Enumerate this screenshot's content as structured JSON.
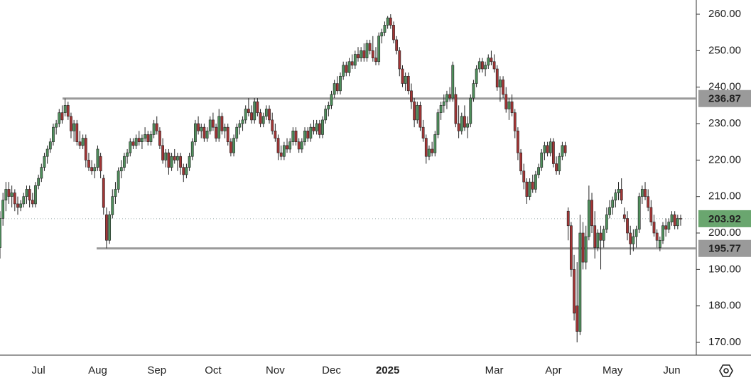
{
  "chart_data": {
    "type": "candlestick",
    "up_color": "#4f8f5c",
    "down_color": "#a33535",
    "level_color": "#9a9a9a",
    "last_color": "#6aa66f",
    "ylim": [
      166.5,
      263.9
    ],
    "yticks": [
      {
        "value": 170,
        "label": "170.00"
      },
      {
        "value": 180,
        "label": "180.00"
      },
      {
        "value": 190,
        "label": "190.00"
      },
      {
        "value": 200,
        "label": "200.00"
      },
      {
        "value": 210,
        "label": "210.00"
      },
      {
        "value": 220,
        "label": "220.00"
      },
      {
        "value": 230,
        "label": "230.00"
      },
      {
        "value": 240,
        "label": "240.00"
      },
      {
        "value": 250,
        "label": "250.00"
      },
      {
        "value": 260,
        "label": "260.00"
      }
    ],
    "levels": [
      {
        "value": 236.87,
        "label": "236.87"
      },
      {
        "value": 195.77,
        "label": "195.77"
      }
    ],
    "last_price": {
      "value": 203.92,
      "label": "203.92"
    },
    "categories": [
      null,
      null,
      null,
      null,
      null,
      null,
      null,
      null,
      null,
      null,
      null,
      null,
      null,
      "Jul",
      null,
      null,
      null,
      null,
      null,
      null,
      null,
      null,
      null,
      null,
      null,
      null,
      null,
      null,
      null,
      null,
      null,
      null,
      null,
      "Aug",
      null,
      null,
      null,
      null,
      null,
      null,
      null,
      null,
      null,
      null,
      null,
      null,
      null,
      null,
      null,
      null,
      null,
      null,
      null,
      "Sep",
      null,
      null,
      null,
      null,
      null,
      null,
      null,
      null,
      null,
      null,
      null,
      null,
      null,
      null,
      null,
      null,
      null,
      null,
      "Oct",
      null,
      null,
      null,
      null,
      null,
      null,
      null,
      null,
      null,
      null,
      null,
      null,
      null,
      null,
      null,
      null,
      null,
      null,
      null,
      null,
      "Nov",
      null,
      null,
      null,
      null,
      null,
      null,
      null,
      null,
      null,
      null,
      null,
      null,
      null,
      null,
      null,
      null,
      null,
      null,
      "Dec",
      null,
      null,
      null,
      null,
      null,
      null,
      null,
      null,
      null,
      null,
      null,
      null,
      null,
      null,
      null,
      null,
      null,
      null,
      "2025",
      null,
      null,
      null,
      null,
      null,
      null,
      null,
      null,
      null,
      null,
      null,
      null,
      null,
      null,
      null,
      null,
      null,
      null,
      null,
      null,
      null,
      null,
      null,
      null,
      null,
      null,
      null,
      null,
      null,
      null,
      null,
      null,
      null,
      null,
      null,
      "Mar",
      null,
      null,
      null,
      null,
      null,
      null,
      null,
      null,
      null,
      null,
      null,
      null,
      null,
      null,
      null,
      null,
      null,
      null,
      null,
      "Apr",
      null,
      null,
      null,
      null,
      null,
      null,
      null,
      null,
      null,
      null,
      null,
      null,
      null,
      null,
      null,
      null,
      null,
      null,
      null,
      "May",
      null,
      null,
      null,
      null,
      null,
      null,
      null,
      null,
      null,
      null,
      null,
      null,
      null,
      null,
      null,
      null,
      null,
      null,
      null,
      "Jun",
      null,
      null,
      null
    ],
    "ohlc": [
      [
        196,
        206,
        193,
        204
      ],
      [
        204,
        211,
        202,
        209
      ],
      [
        209,
        214,
        206,
        212
      ],
      [
        212,
        214,
        208,
        210
      ],
      [
        210,
        213,
        207,
        211
      ],
      [
        211,
        212,
        206,
        208
      ],
      [
        208,
        210,
        205,
        207
      ],
      [
        207,
        209,
        206,
        208
      ],
      [
        208,
        211,
        207,
        210
      ],
      [
        210,
        213,
        208,
        212
      ],
      [
        212,
        213,
        207,
        209
      ],
      [
        209,
        211,
        207,
        208
      ],
      [
        208,
        214,
        207,
        213
      ],
      [
        213,
        216,
        212,
        215
      ],
      [
        215,
        219,
        214,
        218
      ],
      [
        218,
        222,
        217,
        221
      ],
      [
        221,
        224,
        219,
        223
      ],
      [
        223,
        226,
        222,
        225
      ],
      [
        225,
        230,
        224,
        229
      ],
      [
        229,
        231,
        227,
        230
      ],
      [
        230,
        234,
        229,
        233
      ],
      [
        233,
        235,
        230,
        231
      ],
      [
        233,
        236.9,
        232,
        235
      ],
      [
        235,
        236,
        231,
        232
      ],
      [
        232,
        233,
        226,
        228
      ],
      [
        228,
        231,
        225,
        230
      ],
      [
        230,
        231,
        224,
        225
      ],
      [
        225,
        228,
        223,
        224
      ],
      [
        224,
        227,
        223,
        226
      ],
      [
        226,
        227,
        218,
        220
      ],
      [
        220,
        222,
        217,
        218
      ],
      [
        218,
        220,
        216,
        217
      ],
      [
        217,
        219,
        215,
        218
      ],
      [
        218,
        224,
        217,
        223
      ],
      [
        221,
        222,
        215,
        217
      ],
      [
        215,
        216,
        205,
        207
      ],
      [
        205,
        207,
        195.8,
        198
      ],
      [
        198,
        206,
        197,
        205
      ],
      [
        205,
        212,
        204,
        210
      ],
      [
        210,
        214,
        208,
        212
      ],
      [
        212,
        218,
        211,
        217
      ],
      [
        217,
        220,
        215,
        218
      ],
      [
        218,
        222,
        217,
        221
      ],
      [
        221,
        223,
        219,
        222
      ],
      [
        222,
        226,
        221,
        225
      ],
      [
        225,
        226,
        223,
        224
      ],
      [
        224,
        227,
        223,
        226
      ],
      [
        226,
        228,
        224,
        225
      ],
      [
        225,
        227,
        223,
        226
      ],
      [
        226,
        229,
        225,
        227
      ],
      [
        227,
        228,
        224,
        225
      ],
      [
        225,
        228,
        224,
        227
      ],
      [
        227,
        231,
        226,
        230
      ],
      [
        230,
        232,
        227,
        228
      ],
      [
        228,
        229,
        223,
        224
      ],
      [
        224,
        226,
        219,
        220
      ],
      [
        220,
        223,
        218,
        222
      ],
      [
        222,
        223,
        216,
        218
      ],
      [
        218,
        222,
        217,
        221
      ],
      [
        221,
        223,
        219,
        220
      ],
      [
        220,
        222,
        217,
        221
      ],
      [
        221,
        222,
        216,
        218
      ],
      [
        218,
        219,
        214,
        216
      ],
      [
        216,
        219,
        215,
        218
      ],
      [
        218,
        222,
        217,
        221
      ],
      [
        221,
        226,
        220,
        225
      ],
      [
        225,
        231,
        224,
        230
      ],
      [
        230,
        232,
        227,
        228
      ],
      [
        228,
        230,
        226,
        229
      ],
      [
        229,
        230,
        225,
        226
      ],
      [
        226,
        229,
        225,
        228
      ],
      [
        228,
        232,
        227,
        231
      ],
      [
        231,
        233,
        228,
        229
      ],
      [
        229,
        230,
        225,
        226
      ],
      [
        226,
        234,
        225,
        232
      ],
      [
        232,
        233,
        227,
        228
      ],
      [
        228,
        230,
        226,
        229
      ],
      [
        229,
        230,
        224,
        225
      ],
      [
        225,
        226,
        221,
        222
      ],
      [
        222,
        227,
        221,
        226
      ],
      [
        226,
        230,
        225,
        229
      ],
      [
        229,
        231,
        227,
        230
      ],
      [
        230,
        232,
        228,
        231
      ],
      [
        231,
        235,
        230,
        234
      ],
      [
        234,
        237,
        232,
        233
      ],
      [
        233,
        235,
        230,
        231
      ],
      [
        231,
        237,
        230,
        236
      ],
      [
        236,
        237,
        232,
        233
      ],
      [
        233,
        234,
        229,
        230
      ],
      [
        230,
        233,
        229,
        232
      ],
      [
        232,
        235,
        231,
        234
      ],
      [
        234,
        235,
        230,
        231
      ],
      [
        231,
        233,
        227,
        228
      ],
      [
        228,
        230,
        225,
        226
      ],
      [
        226,
        227,
        220,
        222
      ],
      [
        222,
        224,
        220,
        221
      ],
      [
        221,
        225,
        220,
        224
      ],
      [
        224,
        226,
        222,
        223
      ],
      [
        223,
        226,
        222,
        225
      ],
      [
        225,
        229,
        224,
        228
      ],
      [
        228,
        229,
        224,
        225
      ],
      [
        225,
        226,
        222,
        223
      ],
      [
        223,
        226,
        222,
        225
      ],
      [
        225,
        229,
        224,
        228
      ],
      [
        228,
        229,
        225,
        226
      ],
      [
        226,
        230,
        225,
        229
      ],
      [
        229,
        231,
        227,
        228
      ],
      [
        228,
        231,
        227,
        230
      ],
      [
        230,
        231,
        226,
        227
      ],
      [
        227,
        232,
        226,
        231
      ],
      [
        231,
        235,
        230,
        234
      ],
      [
        234,
        236,
        232,
        235
      ],
      [
        235,
        239,
        234,
        238
      ],
      [
        238,
        242,
        237,
        241
      ],
      [
        241,
        243,
        238,
        239
      ],
      [
        239,
        244,
        238,
        243
      ],
      [
        243,
        247,
        242,
        246
      ],
      [
        246,
        247,
        243,
        244
      ],
      [
        244,
        248,
        243,
        247
      ],
      [
        247,
        249,
        245,
        246
      ],
      [
        246,
        250,
        245,
        249
      ],
      [
        249,
        251,
        247,
        248
      ],
      [
        248,
        251,
        247,
        250
      ],
      [
        250,
        252,
        247,
        248
      ],
      [
        248,
        253,
        247,
        252
      ],
      [
        252,
        253,
        249,
        250
      ],
      [
        250,
        254,
        247,
        248
      ],
      [
        248,
        251,
        246,
        247
      ],
      [
        247,
        255,
        246,
        254
      ],
      [
        254,
        256,
        252,
        255
      ],
      [
        255,
        258,
        254,
        257
      ],
      [
        257,
        259.5,
        256,
        259
      ],
      [
        259,
        260,
        256,
        257
      ],
      [
        257,
        258,
        252,
        253
      ],
      [
        253,
        254,
        249,
        250
      ],
      [
        250,
        251,
        243,
        245
      ],
      [
        245,
        246,
        240,
        241
      ],
      [
        241,
        244,
        239,
        243
      ],
      [
        243,
        244,
        238,
        239
      ],
      [
        239,
        241,
        234,
        236
      ],
      [
        236,
        237,
        229,
        231
      ],
      [
        231,
        236,
        230,
        235
      ],
      [
        235,
        236,
        228,
        229
      ],
      [
        229,
        231,
        225,
        226
      ],
      [
        226,
        227,
        219,
        221
      ],
      [
        221,
        224,
        220,
        223
      ],
      [
        223,
        225,
        221,
        222
      ],
      [
        222,
        228,
        221,
        227
      ],
      [
        227,
        234,
        226,
        233
      ],
      [
        233,
        236,
        231,
        235
      ],
      [
        235,
        238,
        233,
        236
      ],
      [
        236,
        239,
        234,
        238
      ],
      [
        238,
        240,
        236,
        237
      ],
      [
        237,
        247,
        236,
        246
      ],
      [
        238,
        240,
        229,
        230
      ],
      [
        230,
        235,
        226,
        228
      ],
      [
        228,
        233,
        227,
        232
      ],
      [
        232,
        235,
        228,
        229
      ],
      [
        229,
        232,
        226,
        230
      ],
      [
        230,
        238,
        229,
        237
      ],
      [
        237,
        242,
        236,
        241
      ],
      [
        241,
        246,
        240,
        245
      ],
      [
        245,
        248,
        244,
        247
      ],
      [
        247,
        248,
        244,
        245
      ],
      [
        245,
        247,
        243,
        246
      ],
      [
        246,
        249,
        245,
        248
      ],
      [
        248,
        250,
        246,
        247
      ],
      [
        247,
        249,
        244,
        245
      ],
      [
        245,
        246,
        239,
        240
      ],
      [
        240,
        243,
        236,
        242
      ],
      [
        242,
        243,
        237,
        238
      ],
      [
        238,
        240,
        233,
        234
      ],
      [
        234,
        237,
        231,
        236
      ],
      [
        236,
        238,
        232,
        233
      ],
      [
        233,
        234,
        226,
        228
      ],
      [
        228,
        229,
        220,
        222
      ],
      [
        222,
        223,
        216,
        217
      ],
      [
        217,
        219,
        212,
        214
      ],
      [
        214,
        215,
        208,
        210
      ],
      [
        210,
        215,
        209,
        214
      ],
      [
        214,
        216,
        211,
        212
      ],
      [
        212,
        217,
        211,
        216
      ],
      [
        216,
        219,
        215,
        218
      ],
      [
        218,
        223,
        217,
        222
      ],
      [
        222,
        225,
        220,
        224
      ],
      [
        224,
        225,
        221,
        222
      ],
      [
        222,
        226,
        221,
        225
      ],
      [
        225,
        226,
        218,
        219
      ],
      [
        219,
        221,
        216,
        217
      ],
      [
        217,
        222,
        216,
        221
      ],
      [
        221,
        225,
        220,
        224
      ],
      [
        224,
        225,
        221,
        222
      ],
      [
        206,
        207,
        198,
        202
      ],
      [
        202,
        203,
        188,
        190
      ],
      [
        190,
        194,
        176,
        178
      ],
      [
        180,
        192,
        170,
        173
      ],
      [
        173,
        205,
        172,
        200
      ],
      [
        200,
        203,
        190,
        192
      ],
      [
        192,
        202,
        190,
        199
      ],
      [
        199,
        213,
        198,
        209
      ],
      [
        209,
        211,
        200,
        202
      ],
      [
        202,
        206,
        193,
        196
      ],
      [
        196,
        201,
        195,
        200
      ],
      [
        200,
        202,
        190,
        198
      ],
      [
        198,
        202,
        196,
        201
      ],
      [
        201,
        207,
        200,
        205
      ],
      [
        205,
        209,
        204,
        207
      ],
      [
        207,
        210,
        205,
        209
      ],
      [
        209,
        212,
        207,
        211
      ],
      [
        211,
        214,
        209,
        212
      ],
      [
        212,
        215,
        208,
        209
      ],
      [
        205,
        207,
        203,
        204
      ],
      [
        204,
        206,
        198,
        200
      ],
      [
        200,
        202,
        194,
        197
      ],
      [
        197,
        201,
        195,
        199
      ],
      [
        199,
        202,
        196,
        201
      ],
      [
        201,
        211,
        200,
        210
      ],
      [
        210,
        213,
        208,
        212
      ],
      [
        212,
        214,
        209,
        210
      ],
      [
        210,
        212,
        206,
        207
      ],
      [
        207,
        209,
        202,
        203
      ],
      [
        203,
        205,
        199,
        200
      ],
      [
        200,
        201,
        196,
        198
      ],
      [
        196,
        199,
        195,
        198
      ],
      [
        198,
        203,
        197,
        202
      ],
      [
        202,
        204,
        199,
        201
      ],
      [
        201,
        204,
        200,
        203
      ],
      [
        203,
        206,
        202,
        205
      ],
      [
        205,
        206,
        201,
        202
      ],
      [
        202,
        205,
        201,
        204
      ],
      [
        204,
        205,
        202,
        203.92
      ]
    ]
  }
}
